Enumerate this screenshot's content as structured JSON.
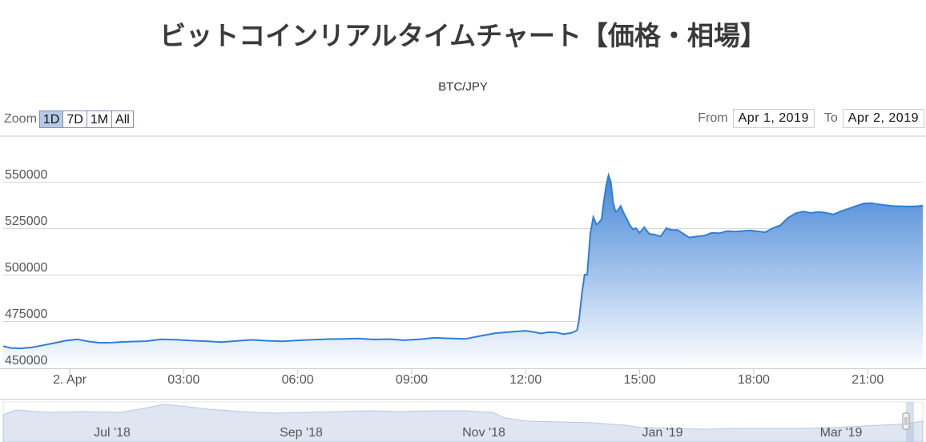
{
  "page": {
    "title": "ビットコインリアルタイムチャート【価格・相場】"
  },
  "zoom": {
    "label": "Zoom",
    "buttons": [
      "1D",
      "7D",
      "1M",
      "All"
    ],
    "active": "1D"
  },
  "range": {
    "from_label": "From",
    "from_value": "Apr 1, 2019",
    "to_label": "To",
    "to_value": "Apr 2, 2019"
  },
  "chart_data": {
    "type": "area",
    "subtitle": "BTC/JPY",
    "x_ticks": [
      "2. Apr",
      "03:00",
      "06:00",
      "09:00",
      "12:00",
      "15:00",
      "18:00",
      "21:00"
    ],
    "x_tick_hours": [
      0,
      3,
      6,
      9,
      12,
      15,
      18,
      21
    ],
    "x_range_hours": [
      -1.75,
      22.45
    ],
    "y_ticks": [
      "550000",
      "525000",
      "500000",
      "475000",
      "450000"
    ],
    "y_tick_values": [
      550000,
      525000,
      500000,
      475000,
      450000
    ],
    "ylim": [
      450000,
      555000
    ],
    "grid": true,
    "series": [
      {
        "x": [
          -1.75,
          -1.55,
          -1.3,
          -1.0,
          -0.7,
          -0.4,
          -0.1,
          0.2,
          0.5,
          0.8,
          1.1,
          1.4,
          1.7,
          2.0,
          2.4,
          2.8,
          3.2,
          3.6,
          4.0,
          4.4,
          4.8,
          5.2,
          5.6,
          6.0,
          6.4,
          6.8,
          7.2,
          7.6,
          8.0,
          8.4,
          8.8,
          9.2,
          9.6,
          10.0,
          10.4,
          10.8,
          11.2,
          11.6,
          12.0,
          12.2,
          12.4,
          12.6,
          12.8,
          13.0,
          13.2,
          13.35,
          13.4,
          13.48,
          13.55,
          13.62,
          13.7,
          13.78,
          13.86,
          13.93,
          14.0,
          14.06,
          14.12,
          14.18,
          14.24,
          14.3,
          14.36,
          14.42,
          14.5,
          14.58,
          14.66,
          14.74,
          14.82,
          14.9,
          15.0,
          15.12,
          15.25,
          15.4,
          15.55,
          15.7,
          15.85,
          16.0,
          16.15,
          16.3,
          16.5,
          16.7,
          16.9,
          17.1,
          17.3,
          17.5,
          17.7,
          17.9,
          18.1,
          18.3,
          18.5,
          18.7,
          18.9,
          19.1,
          19.3,
          19.5,
          19.7,
          19.9,
          20.1,
          20.3,
          20.5,
          20.7,
          20.9,
          21.1,
          21.3,
          21.5,
          21.7,
          21.9,
          22.1,
          22.3,
          22.45
        ],
        "values": [
          461500,
          460500,
          460300,
          460800,
          462000,
          463200,
          464500,
          465200,
          464000,
          463300,
          463400,
          463800,
          464000,
          464200,
          465200,
          465000,
          464500,
          464200,
          463700,
          464300,
          464900,
          464400,
          464100,
          464600,
          465000,
          465300,
          465400,
          465600,
          465100,
          465300,
          464700,
          465200,
          466000,
          465700,
          465400,
          467000,
          468500,
          469200,
          469800,
          469200,
          468300,
          469000,
          468900,
          468000,
          468600,
          470000,
          475000,
          490000,
          500000,
          500000,
          522000,
          531000,
          527000,
          528000,
          530000,
          540000,
          548000,
          553500,
          550000,
          539000,
          534000,
          534500,
          537000,
          533000,
          530000,
          526500,
          524500,
          525000,
          522500,
          525500,
          522000,
          521500,
          520500,
          525000,
          524000,
          524000,
          522000,
          520000,
          520500,
          521000,
          522500,
          522300,
          523500,
          523200,
          523500,
          523800,
          523300,
          522800,
          525000,
          526500,
          530500,
          533000,
          534000,
          533200,
          533800,
          533300,
          532400,
          534200,
          535500,
          537000,
          538300,
          538500,
          537800,
          537300,
          536900,
          536800,
          536700,
          536800,
          537200
        ]
      }
    ],
    "navigator": {
      "x_ticks": [
        "Jul '18",
        "Sep '18",
        "Nov '18",
        "Jan '19",
        "Mar '19"
      ]
    }
  },
  "colors": {
    "line": "#2f7ed8",
    "area_top": "#3a7fd5",
    "area_bottom": "#ffffff",
    "grid": "#d8d8d8",
    "axis_text": "#555555",
    "navigator_fill": "#dfe6f2",
    "navigator_line": "#b7c7e0",
    "button_border": "#7f8ec1",
    "button_active": "#b8c9e6"
  }
}
